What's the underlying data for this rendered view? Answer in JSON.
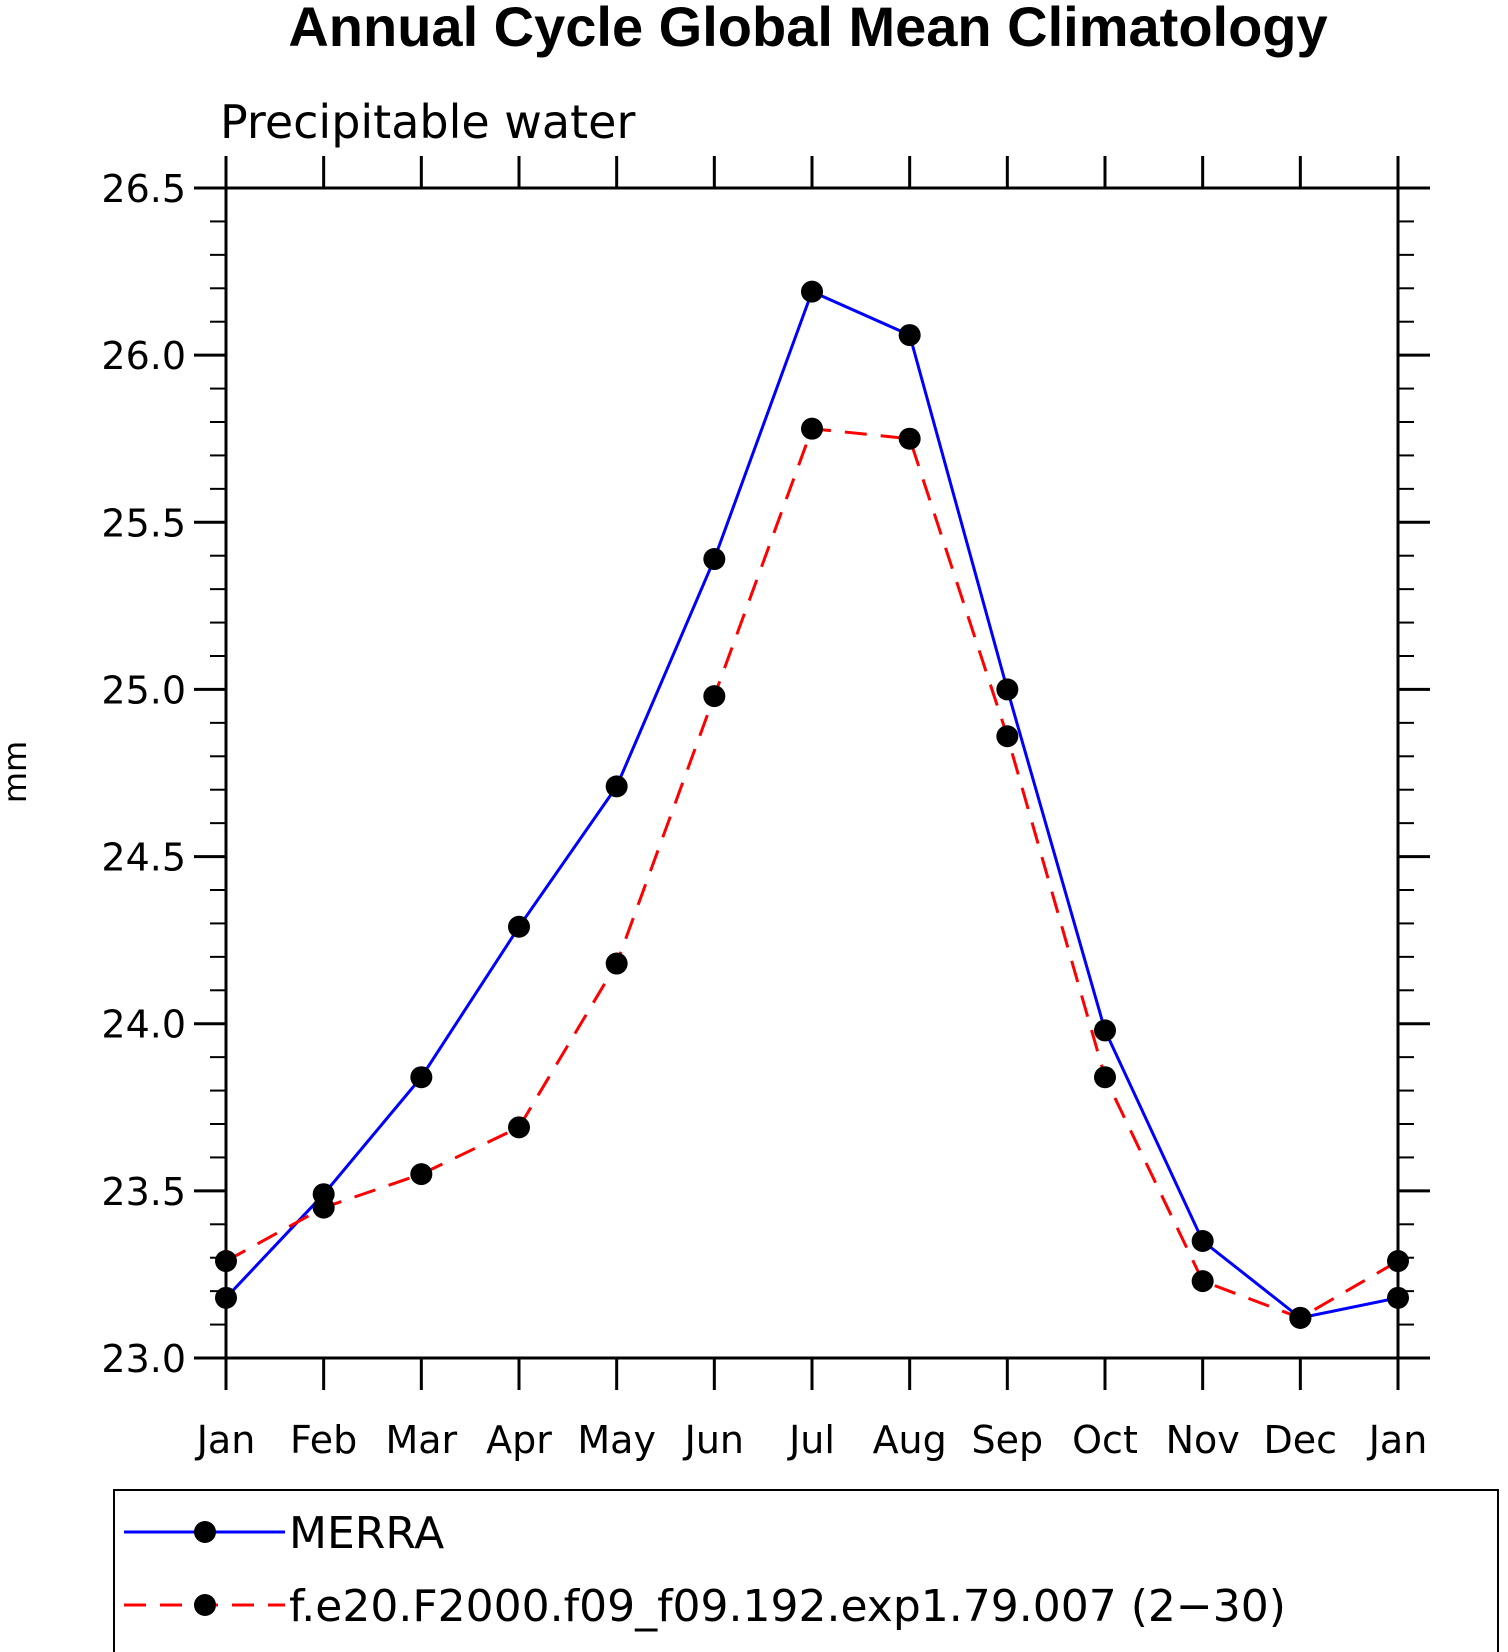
{
  "chart_data": {
    "type": "line",
    "title": "Annual Cycle Global Mean Climatology",
    "subtitle": "Precipitable water",
    "xlabel": "",
    "ylabel": "mm",
    "categories": [
      "Jan",
      "Feb",
      "Mar",
      "Apr",
      "May",
      "Jun",
      "Jul",
      "Aug",
      "Sep",
      "Oct",
      "Nov",
      "Dec",
      "Jan"
    ],
    "ylim": [
      23.0,
      26.5
    ],
    "yticks": [
      "23.0",
      "23.5",
      "24.0",
      "24.5",
      "25.0",
      "25.5",
      "26.0",
      "26.5"
    ],
    "grid": false,
    "legend_position": "bottom",
    "series": [
      {
        "name": "MERRA",
        "color": "#0000ff",
        "line_style": "solid",
        "marker": "filled-circle",
        "values": [
          23.18,
          23.49,
          23.84,
          24.29,
          24.71,
          25.39,
          26.19,
          26.06,
          25.0,
          23.98,
          23.35,
          23.12,
          23.18
        ]
      },
      {
        "name": "f.e20.F2000.f09_f09.192.exp1.79.007 (2−30)",
        "color": "#ff0000",
        "line_style": "dashed",
        "marker": "filled-circle",
        "values": [
          23.29,
          23.45,
          23.55,
          23.69,
          24.18,
          24.98,
          25.78,
          25.75,
          24.86,
          23.84,
          23.23,
          23.12,
          23.29
        ]
      }
    ]
  }
}
